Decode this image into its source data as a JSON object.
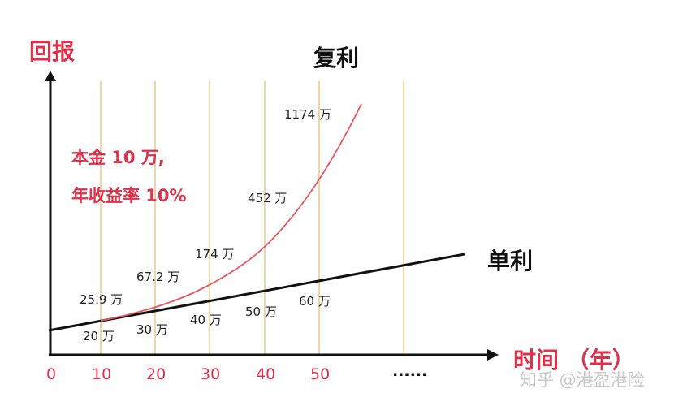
{
  "chart_data": {
    "type": "line",
    "title": "复利",
    "ylabel": "回报",
    "xlabel": "时间 （年）",
    "x_ticks": [
      "0",
      "10",
      "20",
      "30",
      "40",
      "50",
      "......"
    ],
    "x": [
      10,
      20,
      30,
      40,
      50
    ],
    "annotation": [
      "本金 10 万,",
      "年收益率 10%"
    ],
    "series": [
      {
        "name": "复利",
        "color": "#e8575f",
        "values": [
          25.9,
          67.2,
          174,
          452,
          1174
        ],
        "labels": [
          "25.9 万",
          "67.2 万",
          "174 万",
          "452 万",
          "1174 万"
        ]
      },
      {
        "name": "单利",
        "color": "#111111",
        "values": [
          20,
          30,
          40,
          50,
          60
        ],
        "labels": [
          "20 万",
          "30 万",
          "40 万",
          "50 万",
          "60 万"
        ]
      }
    ],
    "grid": "vertical",
    "grid_color": "#e8c987",
    "accent_color": "#e0304a",
    "y_scale": "schematic"
  },
  "watermark": "知乎 @港盈港险"
}
